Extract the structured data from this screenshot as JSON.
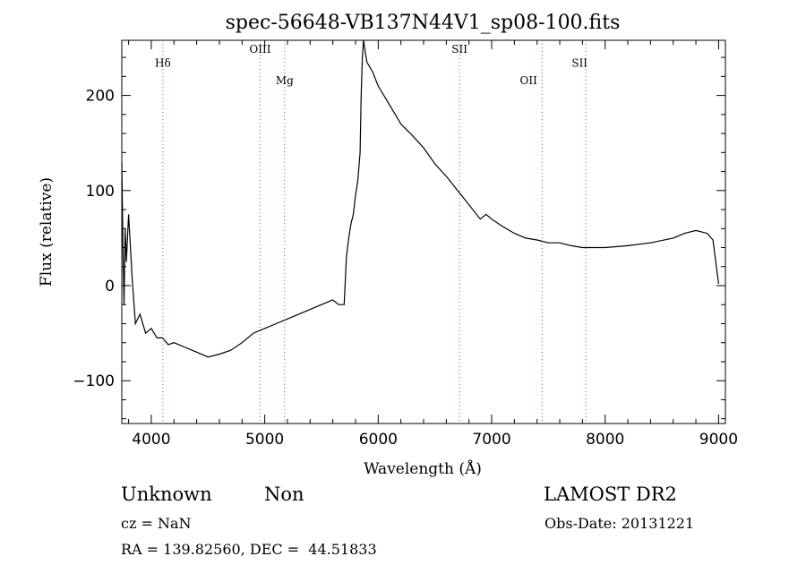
{
  "chart_data": {
    "type": "line",
    "title": "spec-56648-VB137N44V1_sp08-100.fits",
    "xlabel": "Wavelength (Å)",
    "ylabel": "Flux (relative)",
    "xlim": [
      3740,
      9060
    ],
    "ylim": [
      -145,
      258
    ],
    "xticks": [
      4000,
      5000,
      6000,
      7000,
      8000,
      9000
    ],
    "yticks": [
      -100,
      0,
      100,
      200
    ],
    "grid": false,
    "series": [
      {
        "color": "#000000",
        "x": [
          3740,
          3750,
          3760,
          3770,
          3780,
          3800,
          3830,
          3860,
          3900,
          3950,
          4000,
          4050,
          4100,
          4150,
          4200,
          4300,
          4400,
          4500,
          4600,
          4700,
          4800,
          4900,
          5000,
          5100,
          5200,
          5300,
          5400,
          5500,
          5600,
          5650,
          5700,
          5720,
          5740,
          5760,
          5780,
          5800,
          5820,
          5840,
          5850,
          5860,
          5870,
          5880,
          5900,
          5950,
          6000,
          6100,
          6200,
          6300,
          6400,
          6500,
          6600,
          6700,
          6800,
          6900,
          6950,
          7000,
          7100,
          7200,
          7300,
          7400,
          7500,
          7600,
          7700,
          7800,
          7900,
          8000,
          8200,
          8400,
          8600,
          8700,
          8800,
          8900,
          8950,
          9000
        ],
        "y": [
          130,
          40,
          -20,
          60,
          25,
          75,
          10,
          -40,
          -30,
          -50,
          -45,
          -55,
          -55,
          -62,
          -60,
          -65,
          -70,
          -75,
          -72,
          -68,
          -60,
          -50,
          -45,
          -40,
          -35,
          -30,
          -25,
          -20,
          -15,
          -20,
          -20,
          30,
          50,
          65,
          75,
          95,
          110,
          140,
          200,
          240,
          260,
          250,
          235,
          225,
          210,
          190,
          170,
          158,
          145,
          128,
          115,
          100,
          85,
          70,
          75,
          70,
          62,
          55,
          50,
          48,
          45,
          45,
          42,
          40,
          40,
          40,
          42,
          45,
          50,
          55,
          58,
          55,
          48,
          2
        ]
      }
    ],
    "annotations": [
      {
        "text": "Hδ",
        "x": 4102,
        "y": 230
      },
      {
        "text": "OIII",
        "x": 4959,
        "y": 245
      },
      {
        "text": "Mg",
        "x": 5175,
        "y": 212
      },
      {
        "text": "SII",
        "x": 6717,
        "y": 245
      },
      {
        "text": "OII",
        "x": 7325,
        "y": 212
      },
      {
        "text": "SII",
        "x": 7775,
        "y": 230
      }
    ],
    "line_markers": [
      4102,
      4959,
      5175,
      6717,
      7445,
      7830
    ]
  },
  "footer": {
    "classification": "Unknown",
    "subclass": "Non",
    "survey": "LAMOST DR2",
    "cz": "cz = NaN",
    "obs_date": "Obs-Date: 20131221",
    "coords": "RA = 139.82560, DEC =  44.51833"
  }
}
